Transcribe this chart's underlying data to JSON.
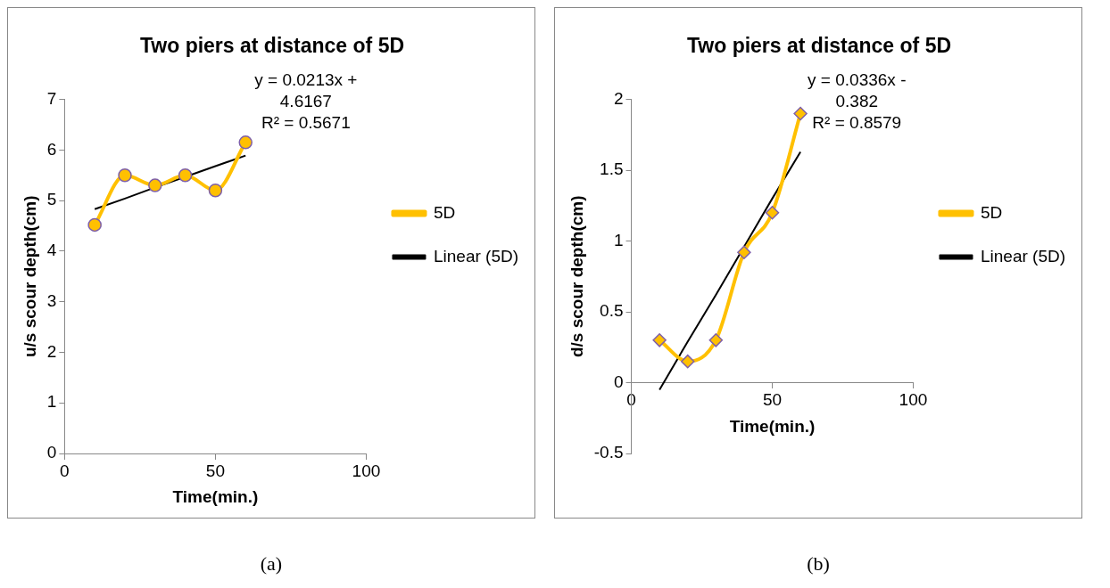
{
  "chart_data": [
    {
      "type": "line",
      "title": "Two piers at distance of 5D",
      "xlabel": "Time(min.)",
      "ylabel": "u/s scour depth(cm)",
      "xlim": [
        0,
        100
      ],
      "xticks": [
        0,
        50,
        100
      ],
      "ylim": [
        0,
        7
      ],
      "yticks": [
        0,
        1,
        2,
        3,
        4,
        5,
        6,
        7
      ],
      "grid": false,
      "legend": "right",
      "annotations": [
        "y = 0.0213x + 4.6167",
        "R² = 0.5671",
        "(a)"
      ],
      "x": [
        10,
        20,
        30,
        40,
        50,
        60
      ],
      "series": [
        {
          "name": "5D",
          "color": "#ffc000",
          "marker": "circle",
          "values": [
            4.52,
            5.5,
            5.3,
            5.5,
            5.2,
            6.15
          ]
        },
        {
          "name": "Linear (5D)",
          "color": "#000000",
          "marker": "none",
          "values": [
            4.83,
            5.04,
            5.26,
            5.47,
            5.68,
            5.89
          ]
        }
      ]
    },
    {
      "type": "line",
      "title": "Two piers at distance of 5D",
      "xlabel": "Time(min.)",
      "ylabel": "d/s scour depth(cm)",
      "xlim": [
        0,
        100
      ],
      "xticks": [
        0,
        50,
        100
      ],
      "ylim": [
        -0.5,
        2
      ],
      "yticks": [
        -0.5,
        0,
        0.5,
        1,
        1.5,
        2
      ],
      "grid": false,
      "legend": "right",
      "annotations": [
        "y = 0.0336x - 0.382",
        "R² = 0.8579",
        "(b)"
      ],
      "x": [
        10,
        20,
        30,
        40,
        50,
        60
      ],
      "series": [
        {
          "name": "5D",
          "color": "#ffc000",
          "marker": "diamond",
          "values": [
            0.3,
            0.15,
            0.3,
            0.92,
            1.2,
            1.9
          ]
        },
        {
          "name": "Linear (5D)",
          "color": "#000000",
          "marker": "none",
          "values": [
            -0.05,
            0.29,
            0.62,
            0.96,
            1.3,
            1.63
          ]
        }
      ]
    }
  ]
}
